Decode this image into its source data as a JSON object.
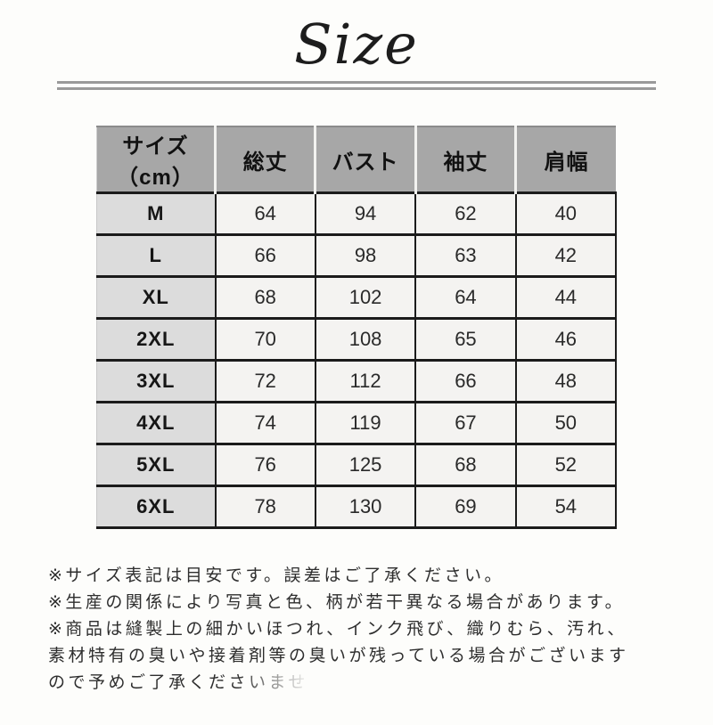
{
  "title": "Size",
  "chart_data": {
    "type": "table",
    "title": "Size",
    "columns": [
      "サイズ（cm）",
      "総丈",
      "バスト",
      "袖丈",
      "肩幅"
    ],
    "rows": [
      [
        "M",
        64,
        94,
        62,
        40
      ],
      [
        "L",
        66,
        98,
        63,
        42
      ],
      [
        "XL",
        68,
        102,
        64,
        44
      ],
      [
        "2XL",
        70,
        108,
        65,
        46
      ],
      [
        "3XL",
        72,
        112,
        66,
        48
      ],
      [
        "4XL",
        74,
        119,
        67,
        50
      ],
      [
        "5XL",
        76,
        125,
        68,
        52
      ],
      [
        "6XL",
        78,
        130,
        69,
        54
      ]
    ],
    "layout": {
      "header_background": "#a7a7a7",
      "label_column_background": "#dcdcdc",
      "cell_background": "#f4f3f1",
      "grid": "on"
    }
  },
  "notes": {
    "lines": [
      "※サイズ表記は目安です。誤差はご了承ください。",
      "※生産の関係により写真と色、柄が若干異なる場合があります。",
      "※商品は縫製上の細かいほつれ、インク飛び、織りむら、汚れ、",
      "素材特有の臭いや接着剤等の臭いが残っている場合がございます",
      "ので予めご了承くださいませ"
    ]
  },
  "colors": {
    "header_bg": "#a7a7a7",
    "label_col_bg": "#dcdcdc",
    "data_cell_bg": "#f4f3f1",
    "table_border": "#1b1b1b",
    "divider": "#9a9a9a",
    "text": "#1c1c1c"
  }
}
